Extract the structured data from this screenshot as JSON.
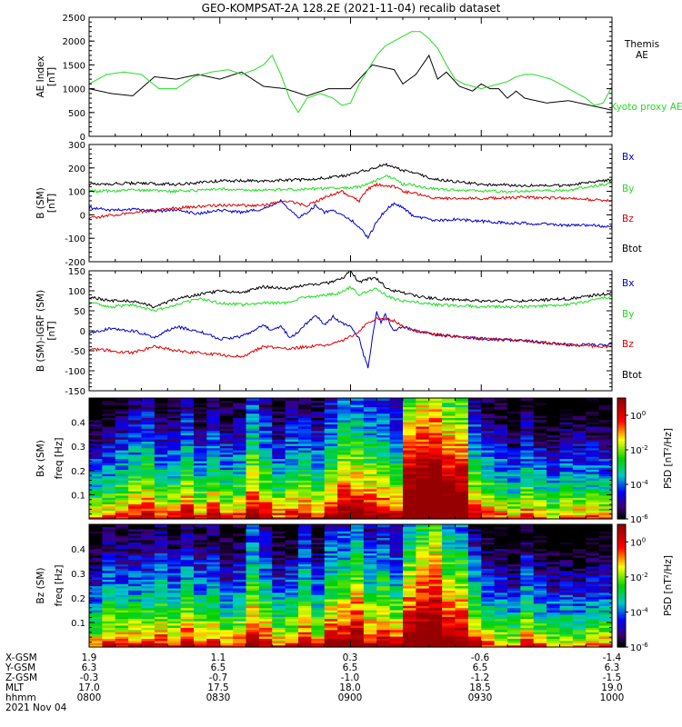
{
  "title": "GEO-KOMPSAT-2A 128.2E (2021-11-04) recalib dataset",
  "colors": {
    "black": "#000000",
    "green": "#22dd22",
    "blue": "#0000c8",
    "red": "#dd0000"
  },
  "chart_data": [
    {
      "id": "ae",
      "type": "line",
      "ylabel": [
        "AE Index",
        "[nT]"
      ],
      "ylim": [
        0,
        2500
      ],
      "yticks": [
        0,
        500,
        1000,
        1500,
        2000,
        2500
      ],
      "xlim": [
        0,
        120
      ],
      "xunit": "minutes since 0800 UT",
      "series": [
        {
          "name": "Themis AE",
          "color": "#000000",
          "x": [
            0,
            5,
            10,
            15,
            20,
            25,
            30,
            35,
            40,
            45,
            50,
            55,
            60,
            65,
            70,
            72,
            75,
            78,
            80,
            82,
            85,
            88,
            90,
            92,
            94,
            96,
            98,
            100,
            105,
            110,
            115,
            120
          ],
          "y": [
            1000,
            900,
            850,
            1250,
            1200,
            1300,
            1200,
            1350,
            1050,
            1000,
            850,
            1000,
            1000,
            1500,
            1400,
            1100,
            1300,
            1700,
            1200,
            1350,
            1050,
            950,
            1100,
            1000,
            1000,
            800,
            950,
            800,
            700,
            750,
            650,
            550
          ]
        },
        {
          "name": "Kyoto proxy AE",
          "color": "#22dd22",
          "x": [
            0,
            4,
            8,
            12,
            16,
            20,
            24,
            28,
            32,
            35,
            38,
            40,
            42,
            44,
            46,
            48,
            50,
            53,
            56,
            58,
            60,
            62,
            64,
            66,
            68,
            70,
            72,
            74,
            76,
            78,
            80,
            82,
            84,
            86,
            88,
            90,
            92,
            94,
            96,
            98,
            100,
            102,
            104,
            106,
            108,
            110,
            112,
            114,
            116,
            118,
            120
          ],
          "y": [
            1100,
            1300,
            1350,
            1300,
            1000,
            1000,
            1250,
            1350,
            1400,
            1300,
            1400,
            1500,
            1700,
            1300,
            800,
            500,
            800,
            900,
            800,
            650,
            700,
            1100,
            1400,
            1700,
            1900,
            2000,
            2100,
            2200,
            2200,
            2050,
            1850,
            1500,
            1200,
            1100,
            1050,
            1000,
            1050,
            1100,
            1150,
            1250,
            1300,
            1300,
            1250,
            1200,
            1100,
            1000,
            900,
            800,
            650,
            700,
            1050
          ]
        }
      ]
    },
    {
      "id": "b_sm",
      "type": "line",
      "ylabel": [
        "B (SM)",
        "[nT]"
      ],
      "ylim": [
        -200,
        300
      ],
      "yticks": [
        -200,
        -100,
        0,
        100,
        200,
        300
      ],
      "xlim": [
        0,
        120
      ],
      "series": [
        {
          "name": "Bx",
          "color": "#0000c8",
          "x": [
            0,
            5,
            10,
            15,
            20,
            25,
            30,
            35,
            40,
            42,
            44,
            46,
            48,
            50,
            52,
            54,
            56,
            58,
            60,
            62,
            64,
            66,
            68,
            70,
            72,
            74,
            76,
            78,
            80,
            84,
            88,
            92,
            96,
            100,
            105,
            110,
            115,
            120
          ],
          "y": [
            30,
            20,
            25,
            15,
            20,
            5,
            20,
            10,
            25,
            40,
            60,
            20,
            -10,
            10,
            40,
            10,
            20,
            0,
            -20,
            -50,
            -100,
            -30,
            20,
            50,
            30,
            0,
            -10,
            -20,
            -25,
            -20,
            -25,
            -30,
            -35,
            -35,
            -40,
            -45,
            -45,
            -50
          ]
        },
        {
          "name": "By",
          "color": "#22dd22",
          "x": [
            0,
            10,
            20,
            30,
            40,
            50,
            60,
            62,
            64,
            66,
            68,
            70,
            72,
            74,
            76,
            80,
            90,
            100,
            110,
            115,
            120
          ],
          "y": [
            100,
            105,
            100,
            110,
            105,
            110,
            115,
            120,
            130,
            150,
            165,
            155,
            130,
            130,
            120,
            110,
            100,
            100,
            105,
            120,
            135
          ]
        },
        {
          "name": "Bz",
          "color": "#dd0000",
          "x": [
            0,
            10,
            20,
            30,
            40,
            45,
            50,
            55,
            58,
            60,
            62,
            64,
            66,
            68,
            70,
            72,
            75,
            80,
            90,
            100,
            110,
            120
          ],
          "y": [
            -15,
            10,
            30,
            40,
            40,
            60,
            40,
            80,
            100,
            80,
            60,
            110,
            130,
            120,
            120,
            100,
            90,
            70,
            70,
            75,
            70,
            60
          ]
        },
        {
          "name": "Btot",
          "color": "#000000",
          "x": [
            0,
            10,
            20,
            30,
            40,
            50,
            60,
            62,
            64,
            66,
            68,
            70,
            72,
            74,
            76,
            80,
            90,
            100,
            110,
            115,
            120
          ],
          "y": [
            130,
            135,
            130,
            145,
            145,
            150,
            170,
            185,
            190,
            205,
            215,
            205,
            190,
            185,
            170,
            150,
            130,
            125,
            125,
            140,
            150
          ]
        }
      ]
    },
    {
      "id": "b_igrf",
      "type": "line",
      "ylabel": [
        "B (SM)-IGRF (SM)",
        "[nT]"
      ],
      "ylim": [
        -150,
        150
      ],
      "yticks": [
        -150,
        -100,
        -50,
        0,
        50,
        100,
        150
      ],
      "xlim": [
        0,
        120
      ],
      "series": [
        {
          "name": "Bx",
          "color": "#0000c8",
          "x": [
            0,
            5,
            10,
            15,
            20,
            25,
            30,
            35,
            40,
            42,
            44,
            46,
            48,
            50,
            52,
            54,
            56,
            58,
            60,
            62,
            63,
            64,
            65,
            66,
            67,
            68,
            70,
            72,
            75,
            80,
            90,
            100,
            110,
            120
          ],
          "y": [
            -5,
            5,
            0,
            -15,
            10,
            0,
            -20,
            -15,
            15,
            0,
            10,
            -15,
            -5,
            20,
            40,
            15,
            35,
            20,
            10,
            -20,
            -60,
            -90,
            -20,
            50,
            20,
            40,
            0,
            10,
            0,
            -10,
            -20,
            -25,
            -35,
            -35
          ]
        },
        {
          "name": "By",
          "color": "#22dd22",
          "x": [
            0,
            5,
            10,
            15,
            20,
            25,
            30,
            35,
            40,
            45,
            50,
            55,
            58,
            60,
            62,
            64,
            66,
            68,
            70,
            72,
            76,
            80,
            90,
            100,
            110,
            120
          ],
          "y": [
            70,
            60,
            65,
            50,
            65,
            80,
            70,
            65,
            70,
            70,
            85,
            90,
            95,
            110,
            90,
            100,
            105,
            90,
            80,
            75,
            70,
            65,
            60,
            60,
            65,
            85
          ]
        },
        {
          "name": "Bz",
          "color": "#dd0000",
          "x": [
            0,
            10,
            15,
            20,
            25,
            30,
            35,
            40,
            45,
            50,
            55,
            58,
            60,
            62,
            64,
            66,
            68,
            70,
            72,
            75,
            80,
            90,
            100,
            110,
            120
          ],
          "y": [
            -45,
            -55,
            -40,
            -50,
            -55,
            -60,
            -65,
            -40,
            -45,
            -40,
            -35,
            -25,
            -15,
            0,
            20,
            30,
            30,
            25,
            10,
            0,
            -10,
            -20,
            -25,
            -35,
            -40
          ]
        },
        {
          "name": "Btot",
          "color": "#000000",
          "x": [
            0,
            5,
            10,
            15,
            20,
            25,
            30,
            35,
            40,
            45,
            50,
            55,
            58,
            60,
            62,
            64,
            66,
            68,
            70,
            72,
            76,
            80,
            90,
            100,
            110,
            120
          ],
          "y": [
            85,
            75,
            75,
            60,
            80,
            90,
            100,
            95,
            110,
            105,
            115,
            120,
            130,
            150,
            120,
            130,
            130,
            110,
            100,
            95,
            85,
            80,
            75,
            75,
            80,
            95
          ]
        }
      ]
    },
    {
      "id": "bx_spec",
      "type": "heatmap",
      "ylabel": [
        "Bx (SM)",
        "freq [Hz]"
      ],
      "ylim": [
        0,
        0.5
      ],
      "yticks": [
        0.1,
        0.2,
        0.3,
        0.4
      ],
      "xlim": [
        0,
        120
      ],
      "colorbar": {
        "label": "PSD [nT²/Hz]",
        "log_min": -6,
        "log_max": 1,
        "ticks": [
          0,
          -2,
          -4,
          -6
        ]
      }
    },
    {
      "id": "bz_spec",
      "type": "heatmap",
      "ylabel": [
        "Bz (SM)",
        "freq [Hz]"
      ],
      "ylim": [
        0,
        0.5
      ],
      "yticks": [
        0.1,
        0.2,
        0.3,
        0.4
      ],
      "xlim": [
        0,
        120
      ],
      "colorbar": {
        "label": "PSD [nT²/Hz]",
        "log_min": -6,
        "log_max": 1,
        "ticks": [
          0,
          -2,
          -4,
          -6
        ]
      }
    }
  ],
  "ephemeris": {
    "labels": [
      "X-GSM",
      "Y-GSM",
      "Z-GSM",
      "MLT",
      "hhmm"
    ],
    "columns": [
      [
        "1.9",
        "6.3",
        "-0.3",
        "17.0",
        "0800"
      ],
      [
        "1.1",
        "6.5",
        "-0.7",
        "17.5",
        "0830"
      ],
      [
        "0.3",
        "6.5",
        "-1.0",
        "18.0",
        "0900"
      ],
      [
        "-0.6",
        "6.5",
        "-1.2",
        "18.5",
        "0930"
      ],
      [
        "-1.4",
        "6.3",
        "-1.5",
        "19.0",
        "1000"
      ]
    ],
    "date": "2021 Nov 04"
  }
}
